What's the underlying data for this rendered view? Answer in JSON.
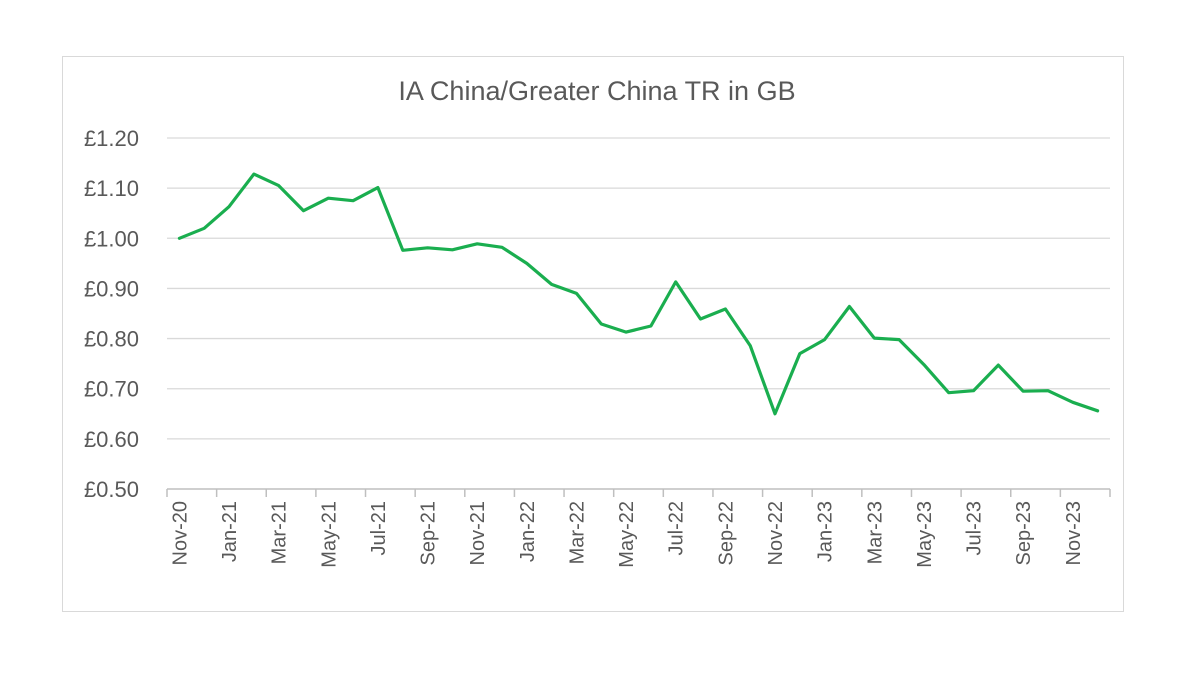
{
  "chart_data": {
    "type": "line",
    "title": "IA China/Greater China TR in GB",
    "xlabel": "",
    "ylabel": "",
    "ylim": [
      0.5,
      1.2
    ],
    "y_ticks": [
      "£1.20",
      "£1.10",
      "£1.00",
      "£0.90",
      "£0.80",
      "£0.70",
      "£0.60",
      "£0.50"
    ],
    "y_tick_values": [
      1.2,
      1.1,
      1.0,
      0.9,
      0.8,
      0.7,
      0.6,
      0.5
    ],
    "x": [
      "Nov-20",
      "Dec-20",
      "Jan-21",
      "Feb-21",
      "Mar-21",
      "Apr-21",
      "May-21",
      "Jun-21",
      "Jul-21",
      "Aug-21",
      "Sep-21",
      "Oct-21",
      "Nov-21",
      "Dec-21",
      "Jan-22",
      "Feb-22",
      "Mar-22",
      "Apr-22",
      "May-22",
      "Jun-22",
      "Jul-22",
      "Aug-22",
      "Sep-22",
      "Oct-22",
      "Nov-22",
      "Dec-22",
      "Jan-23",
      "Feb-23",
      "Mar-23",
      "Apr-23",
      "May-23",
      "Jun-23",
      "Jul-23",
      "Aug-23",
      "Sep-23",
      "Oct-23",
      "Nov-23",
      "Dec-23"
    ],
    "x_tick_labels": [
      "Nov-20",
      "Jan-21",
      "Mar-21",
      "May-21",
      "Jul-21",
      "Sep-21",
      "Nov-21",
      "Jan-22",
      "Mar-22",
      "May-22",
      "Jul-22",
      "Sep-22",
      "Nov-22",
      "Jan-23",
      "Mar-23",
      "May-23",
      "Jul-23",
      "Sep-23",
      "Nov-23"
    ],
    "series": [
      {
        "values": [
          1.0,
          1.02,
          1.063,
          1.128,
          1.105,
          1.055,
          1.08,
          1.075,
          1.101,
          0.976,
          0.981,
          0.977,
          0.989,
          0.982,
          0.95,
          0.908,
          0.89,
          0.829,
          0.813,
          0.825,
          0.913,
          0.839,
          0.859,
          0.786,
          0.65,
          0.77,
          0.798,
          0.864,
          0.801,
          0.798,
          0.748,
          0.692,
          0.696,
          0.747,
          0.695,
          0.696,
          0.673,
          0.656
        ],
        "color": "#1aae4f"
      }
    ],
    "grid": true,
    "legend": "none"
  }
}
